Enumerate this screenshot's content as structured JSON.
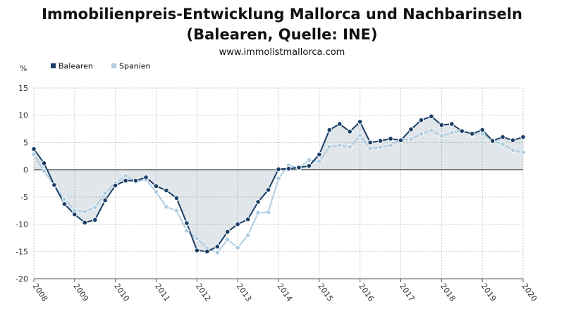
{
  "title_line1": "Immobilienpreis-Entwicklung Mallorca und Nachbarinseln",
  "title_line2": "(Balearen, Quelle: INE)",
  "subtitle": "www.immolistmallorca.com",
  "chart_data": {
    "type": "line",
    "ylabel": "%",
    "ylim": [
      -20,
      15
    ],
    "yticks": [
      15,
      10,
      5,
      0,
      -5,
      -10,
      -15,
      -20
    ],
    "xlim": [
      2008,
      2020
    ],
    "xticks": [
      "2008",
      "2009",
      "2010",
      "2011",
      "2012",
      "2013",
      "2014",
      "2015",
      "2016",
      "2017",
      "2018",
      "2019",
      "2020"
    ],
    "grid": true,
    "legend_position": "top-left",
    "x": [
      2008.0,
      2008.25,
      2008.5,
      2008.75,
      2009.0,
      2009.25,
      2009.5,
      2009.75,
      2010.0,
      2010.25,
      2010.5,
      2010.75,
      2011.0,
      2011.25,
      2011.5,
      2011.75,
      2012.0,
      2012.25,
      2012.5,
      2012.75,
      2013.0,
      2013.25,
      2013.5,
      2013.75,
      2014.0,
      2014.25,
      2014.5,
      2014.75,
      2015.0,
      2015.25,
      2015.5,
      2015.75,
      2016.0,
      2016.25,
      2016.5,
      2016.75,
      2017.0,
      2017.25,
      2017.5,
      2017.75,
      2018.0,
      2018.25,
      2018.5,
      2018.75,
      2019.0,
      2019.25,
      2019.5,
      2019.75,
      2020.0
    ],
    "series": [
      {
        "name": "Balearen",
        "color": "#1b3f66",
        "values": [
          3.8,
          1.2,
          -2.8,
          -6.3,
          -8.2,
          -9.7,
          -9.2,
          -5.6,
          -2.9,
          -2.0,
          -2.0,
          -1.4,
          -3.0,
          -3.8,
          -5.2,
          -9.8,
          -14.8,
          -15.0,
          -14.1,
          -11.4,
          -10.0,
          -9.1,
          -5.9,
          -3.7,
          0.1,
          0.2,
          0.4,
          0.7,
          2.8,
          7.3,
          8.4,
          7.0,
          8.8,
          5.0,
          5.3,
          5.7,
          5.4,
          7.4,
          9.1,
          9.8,
          8.2,
          8.4,
          7.1,
          6.6,
          7.3,
          5.3,
          6.0,
          5.4,
          6.0
        ]
      },
      {
        "name": "Spanien",
        "color": "#aecde1",
        "values": [
          2.8,
          -0.2,
          -2.9,
          -5.4,
          -7.5,
          -7.7,
          -6.9,
          -4.3,
          -2.4,
          -1.1,
          -2.2,
          -1.8,
          -4.1,
          -6.8,
          -7.5,
          -11.2,
          -12.6,
          -14.4,
          -15.2,
          -12.8,
          -14.3,
          -12.0,
          -7.9,
          -7.8,
          -1.6,
          0.8,
          0.3,
          1.8,
          1.5,
          4.2,
          4.5,
          4.2,
          6.3,
          3.9,
          4.1,
          4.5,
          5.5,
          5.6,
          6.6,
          7.2,
          6.2,
          6.8,
          7.2,
          6.5,
          6.6,
          5.3,
          4.7,
          3.6,
          3.2
        ]
      }
    ]
  }
}
